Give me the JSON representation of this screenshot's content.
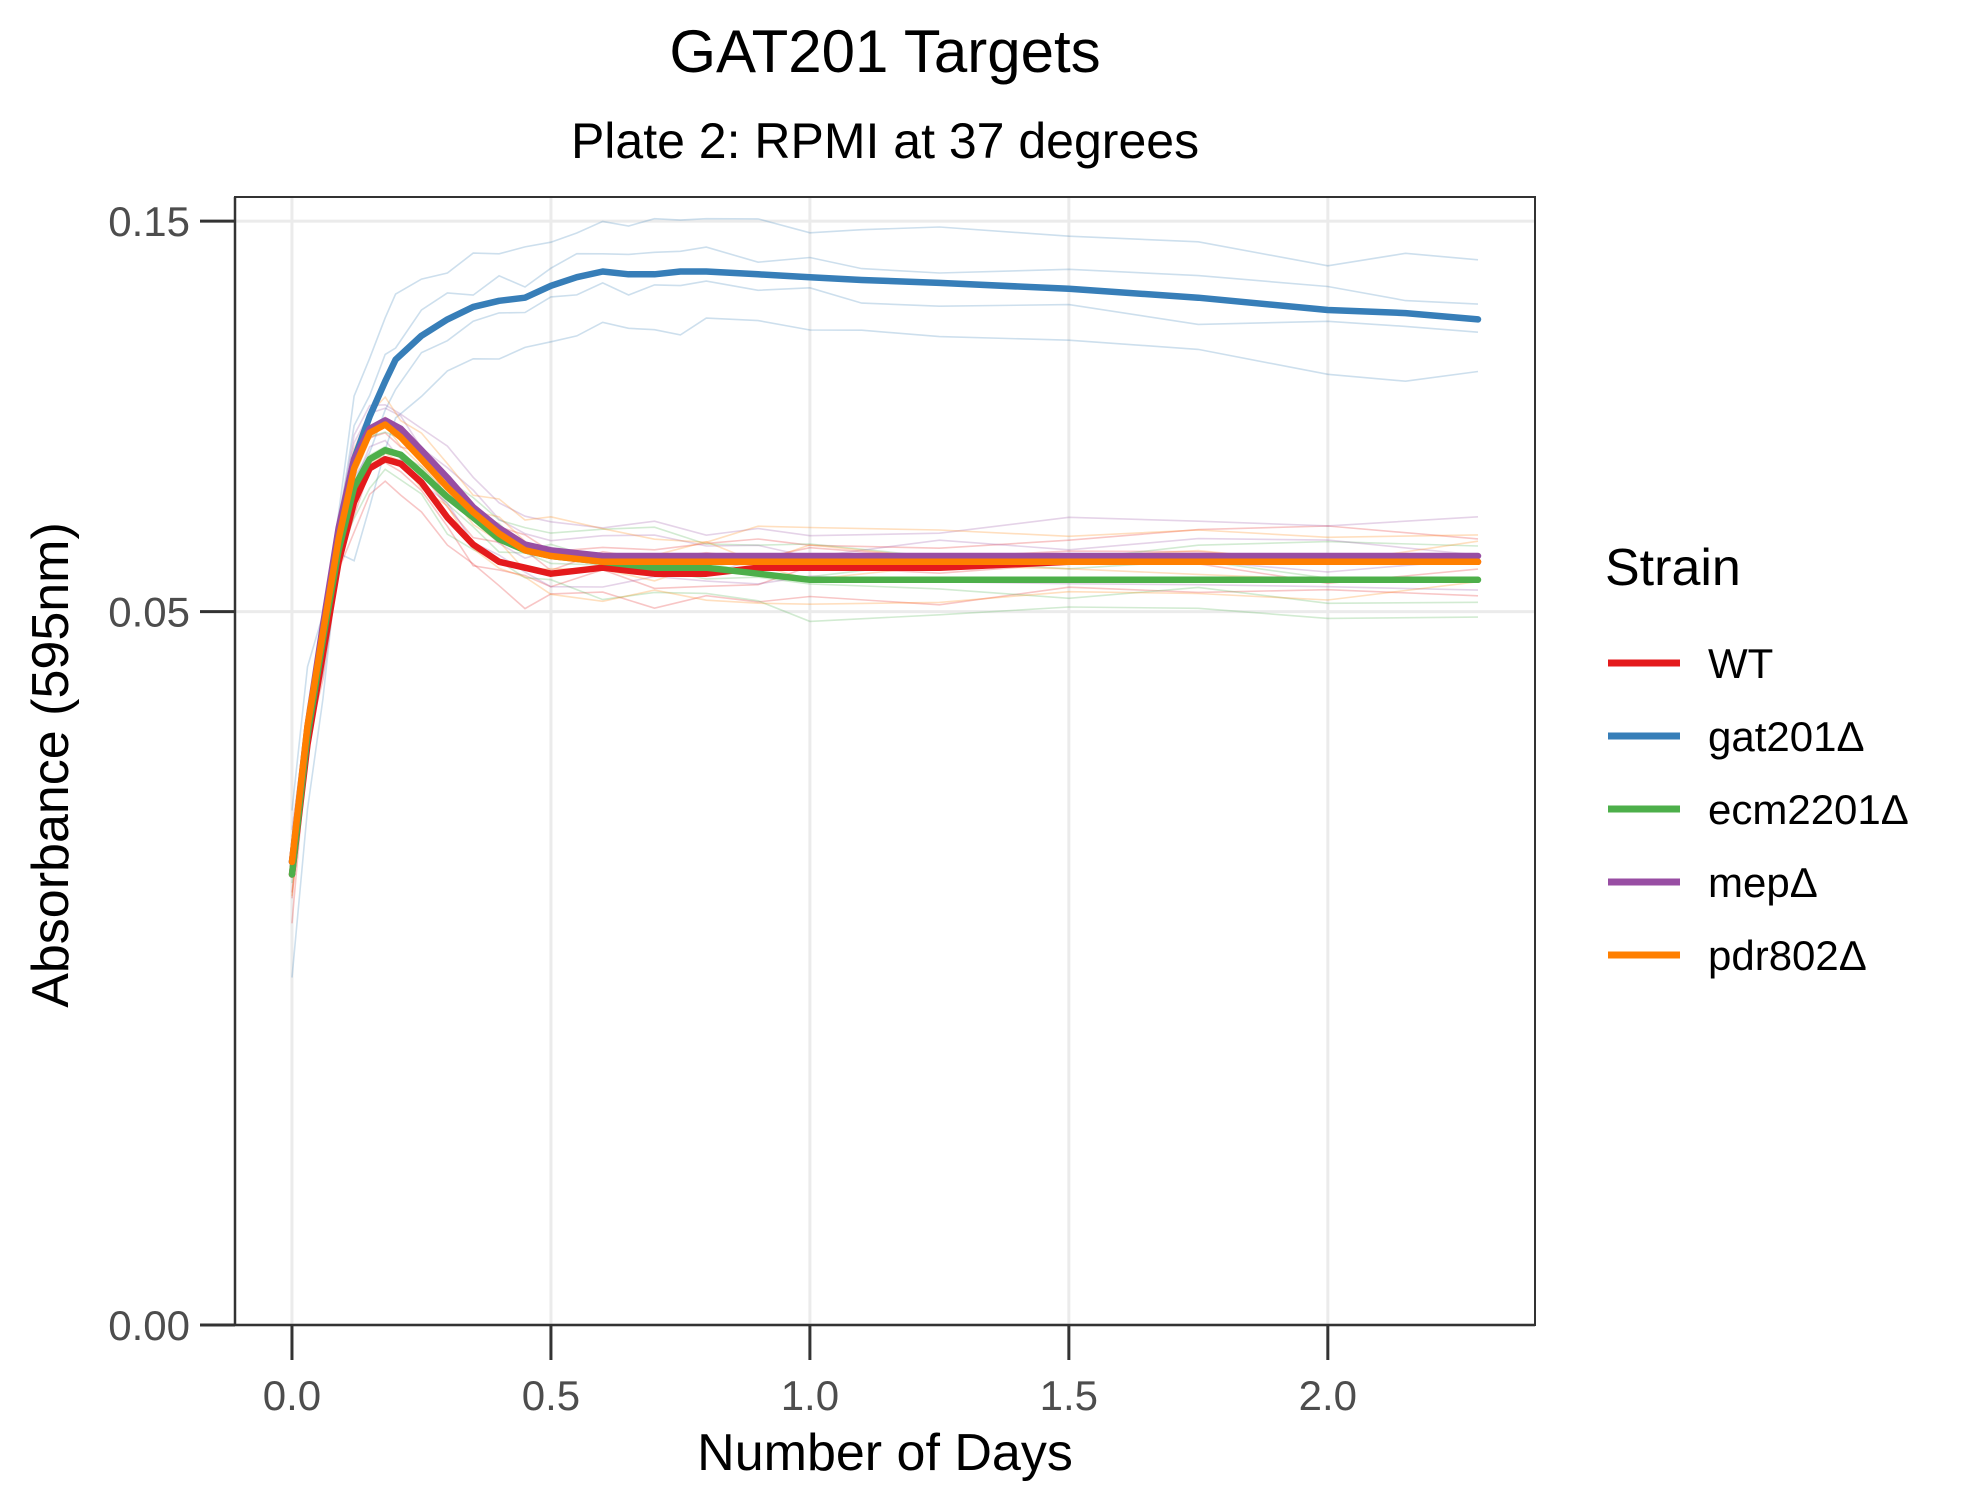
{
  "chart_data": {
    "type": "line",
    "title": "GAT201 Targets",
    "subtitle": "Plate 2: RPMI at 37 degrees",
    "xlabel": "Number of Days",
    "ylabel": "Absorbance (595nm)",
    "xlim": [
      -0.11,
      2.4
    ],
    "ylim": [
      0.0,
      0.16
    ],
    "x_ticks": [
      {
        "value": 0.0,
        "label": "0.0"
      },
      {
        "value": 0.5,
        "label": "0.5"
      },
      {
        "value": 1.0,
        "label": "1.0"
      },
      {
        "value": 1.5,
        "label": "1.5"
      },
      {
        "value": 2.0,
        "label": "2.0"
      }
    ],
    "y_ticks": [
      {
        "value": 0.0,
        "label": "0.00"
      },
      {
        "value": 0.05,
        "label": "0.05"
      },
      {
        "value": 0.15,
        "label": "0.15"
      }
    ],
    "y_scale": "log10(y + 0.01)",
    "grid": true,
    "legend": {
      "title": "Strain",
      "position": "right"
    },
    "series": [
      {
        "name": "WT",
        "color": "#E41A1C",
        "x": [
          0.0,
          0.03,
          0.06,
          0.09,
          0.12,
          0.15,
          0.18,
          0.21,
          0.25,
          0.3,
          0.35,
          0.4,
          0.45,
          0.5,
          0.6,
          0.7,
          0.8,
          0.9,
          1.0,
          1.25,
          1.5,
          1.75,
          2.0,
          2.29
        ],
        "y": [
          0.021,
          0.033,
          0.044,
          0.058,
          0.069,
          0.076,
          0.078,
          0.077,
          0.073,
          0.066,
          0.061,
          0.058,
          0.057,
          0.056,
          0.057,
          0.056,
          0.056,
          0.057,
          0.057,
          0.057,
          0.058,
          0.058,
          0.058,
          0.058
        ]
      },
      {
        "name": "gat201Δ",
        "color": "#377EB8",
        "x": [
          0.0,
          0.03,
          0.06,
          0.09,
          0.12,
          0.15,
          0.18,
          0.2,
          0.25,
          0.3,
          0.35,
          0.4,
          0.45,
          0.5,
          0.55,
          0.6,
          0.65,
          0.7,
          0.75,
          0.8,
          0.9,
          1.0,
          1.1,
          1.25,
          1.5,
          1.75,
          2.0,
          2.15,
          2.29
        ],
        "y": [
          0.022,
          0.034,
          0.046,
          0.063,
          0.078,
          0.088,
          0.097,
          0.103,
          0.11,
          0.115,
          0.119,
          0.121,
          0.122,
          0.126,
          0.129,
          0.131,
          0.13,
          0.13,
          0.131,
          0.131,
          0.13,
          0.129,
          0.128,
          0.127,
          0.125,
          0.122,
          0.118,
          0.117,
          0.115
        ]
      },
      {
        "name": "ecm2201Δ",
        "color": "#4DAF4A",
        "x": [
          0.0,
          0.03,
          0.06,
          0.09,
          0.12,
          0.15,
          0.18,
          0.21,
          0.25,
          0.3,
          0.35,
          0.4,
          0.45,
          0.5,
          0.6,
          0.7,
          0.8,
          0.9,
          1.0,
          1.25,
          1.5,
          1.75,
          2.0,
          2.29
        ],
        "y": [
          0.021,
          0.034,
          0.046,
          0.06,
          0.072,
          0.078,
          0.08,
          0.079,
          0.075,
          0.07,
          0.066,
          0.062,
          0.06,
          0.059,
          0.058,
          0.057,
          0.057,
          0.056,
          0.055,
          0.055,
          0.055,
          0.055,
          0.055,
          0.055
        ]
      },
      {
        "name": "mepΔ",
        "color": "#984EA3",
        "x": [
          0.0,
          0.03,
          0.06,
          0.09,
          0.12,
          0.15,
          0.18,
          0.21,
          0.25,
          0.3,
          0.35,
          0.4,
          0.45,
          0.5,
          0.6,
          0.7,
          0.8,
          0.9,
          1.0,
          1.25,
          1.5,
          1.75,
          2.0,
          2.29
        ],
        "y": [
          0.022,
          0.035,
          0.048,
          0.064,
          0.078,
          0.085,
          0.087,
          0.085,
          0.08,
          0.074,
          0.068,
          0.064,
          0.061,
          0.06,
          0.059,
          0.059,
          0.059,
          0.059,
          0.059,
          0.059,
          0.059,
          0.059,
          0.059,
          0.059
        ]
      },
      {
        "name": "pdr802Δ",
        "color": "#FF7F00",
        "x": [
          0.0,
          0.03,
          0.06,
          0.09,
          0.12,
          0.15,
          0.18,
          0.21,
          0.25,
          0.3,
          0.35,
          0.4,
          0.45,
          0.5,
          0.6,
          0.7,
          0.8,
          0.9,
          1.0,
          1.25,
          1.5,
          1.75,
          2.0,
          2.29
        ],
        "y": [
          0.022,
          0.035,
          0.047,
          0.062,
          0.076,
          0.084,
          0.086,
          0.083,
          0.078,
          0.072,
          0.067,
          0.063,
          0.06,
          0.059,
          0.058,
          0.058,
          0.058,
          0.058,
          0.058,
          0.058,
          0.058,
          0.058,
          0.058,
          0.058
        ]
      }
    ]
  }
}
